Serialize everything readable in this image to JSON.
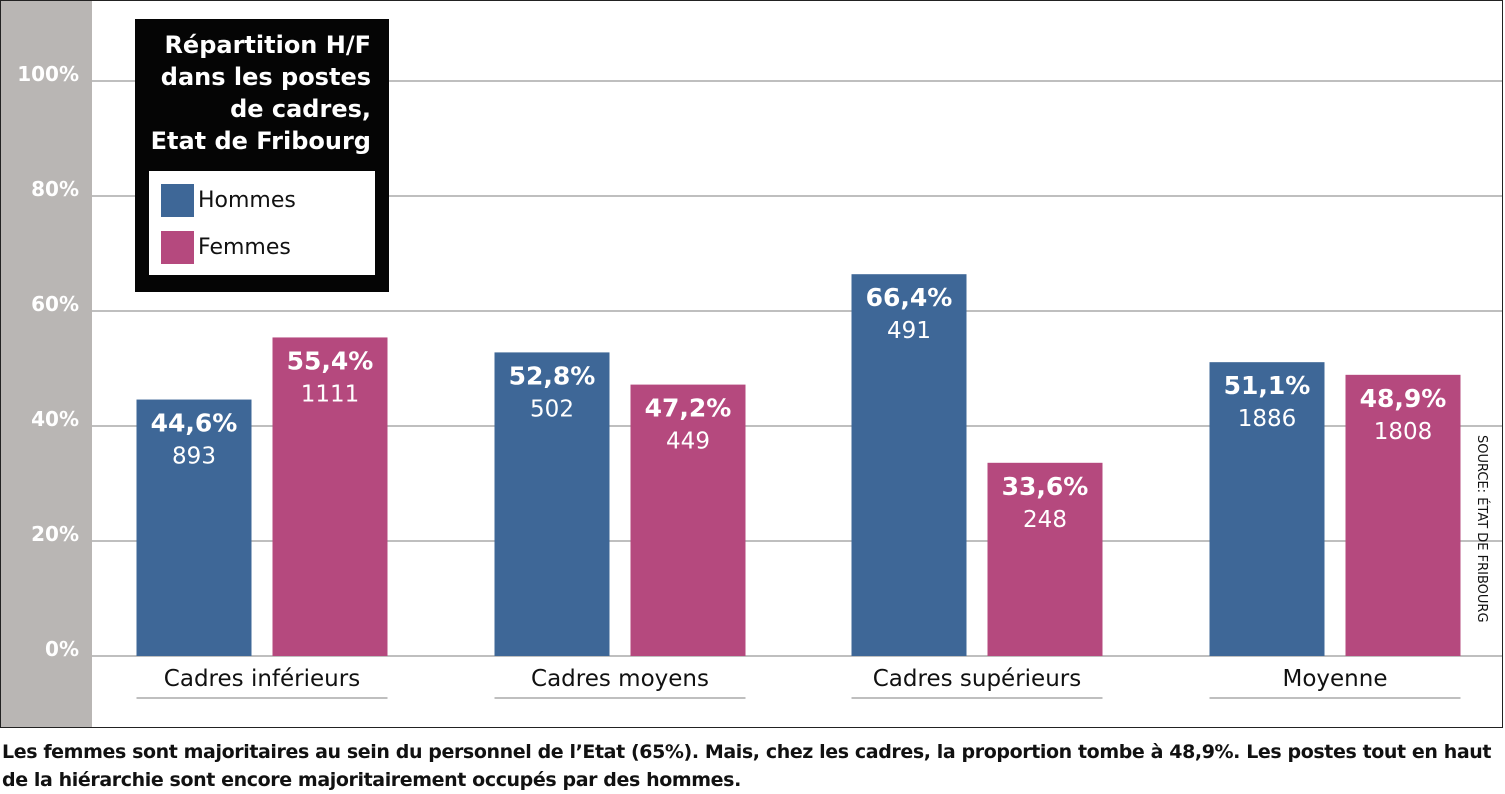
{
  "chart_data": {
    "type": "bar",
    "title": "Répartition H/F dans les postes de cadres, Etat de Fribourg",
    "categories": [
      "Cadres inférieurs",
      "Cadres moyens",
      "Cadres supérieurs",
      "Moyenne"
    ],
    "series": [
      {
        "name": "Hommes",
        "color": "#3e6797",
        "values": [
          44.6,
          52.8,
          66.4,
          51.1
        ],
        "value_labels": [
          "44,6%",
          "52,8%",
          "66,4%",
          "51,1%"
        ],
        "counts": [
          "893",
          "502",
          "491",
          "1886"
        ]
      },
      {
        "name": "Femmes",
        "color": "#b5497e",
        "values": [
          55.4,
          47.2,
          33.6,
          48.9
        ],
        "value_labels": [
          "55,4%",
          "47,2%",
          "33,6%",
          "48,9%"
        ],
        "counts": [
          "1111",
          "449",
          "248",
          "1808"
        ]
      }
    ],
    "y_ticks": [
      0,
      20,
      40,
      60,
      80,
      100
    ],
    "y_tick_labels": [
      "0%",
      "20%",
      "40%",
      "60%",
      "80%",
      "100%"
    ],
    "ylim": [
      0,
      100
    ],
    "grid": true,
    "legend_position": "top-left"
  },
  "legend": {
    "title_lines": [
      "Répartition H/F",
      "dans les postes",
      "de cadres,",
      "Etat de Fribourg"
    ],
    "items": [
      {
        "label": "Hommes",
        "color": "#3e6797"
      },
      {
        "label": "Femmes",
        "color": "#b5497e"
      }
    ]
  },
  "source": "SOURCE: ÉTAT DE FRIBOURG",
  "caption": "Les femmes sont majoritaires au sein du personnel de l’Etat (65%). Mais, chez les cadres, la proportion tombe à 48,9%. Les postes tout en haut de la hiérarchie sont encore majoritairement occupés par des hommes.",
  "colors": {
    "axis_strip": "#b9b6b4",
    "gridline": "#999999"
  }
}
